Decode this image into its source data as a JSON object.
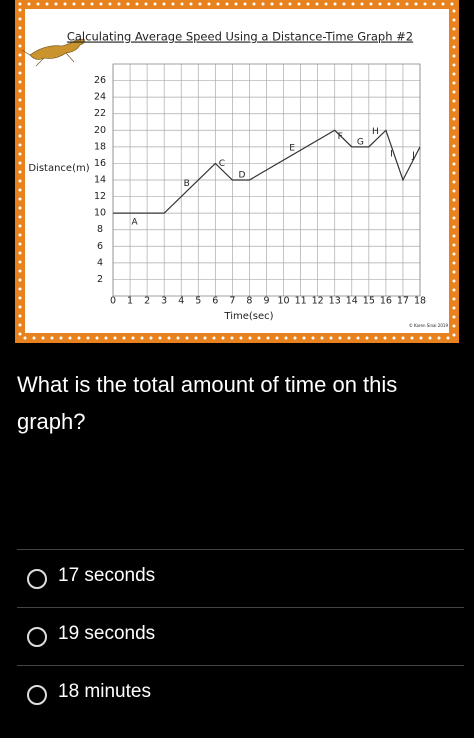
{
  "chart": {
    "type": "line",
    "title": "Calculating Average Speed Using a Distance-Time Graph #2",
    "x_label": "Time(sec)",
    "y_label": "Distance(m)",
    "credit": "© Karen Sinai 2019",
    "x": [
      0,
      3,
      6,
      7,
      8,
      13,
      14,
      15,
      16,
      17,
      18
    ],
    "values": [
      10,
      10,
      16,
      14,
      14,
      20,
      18,
      18,
      20,
      14,
      18
    ],
    "annotations": [
      "A",
      "B",
      "C",
      "D",
      "E",
      "F",
      "G",
      "H",
      "I",
      "J"
    ],
    "color": "#333333",
    "grid": true,
    "xlim": [
      0,
      18
    ],
    "ylim": [
      0,
      28
    ],
    "xticks": [
      0,
      1,
      2,
      3,
      4,
      5,
      6,
      7,
      8,
      9,
      10,
      11,
      12,
      13,
      14,
      15,
      16,
      17,
      18
    ],
    "yticks": [
      2,
      4,
      6,
      8,
      10,
      12,
      14,
      16,
      18,
      20,
      22,
      24,
      26
    ]
  },
  "question": "What is the total amount of time on this graph?",
  "options": [
    "17 seconds",
    "19 seconds",
    "18 minutes"
  ]
}
